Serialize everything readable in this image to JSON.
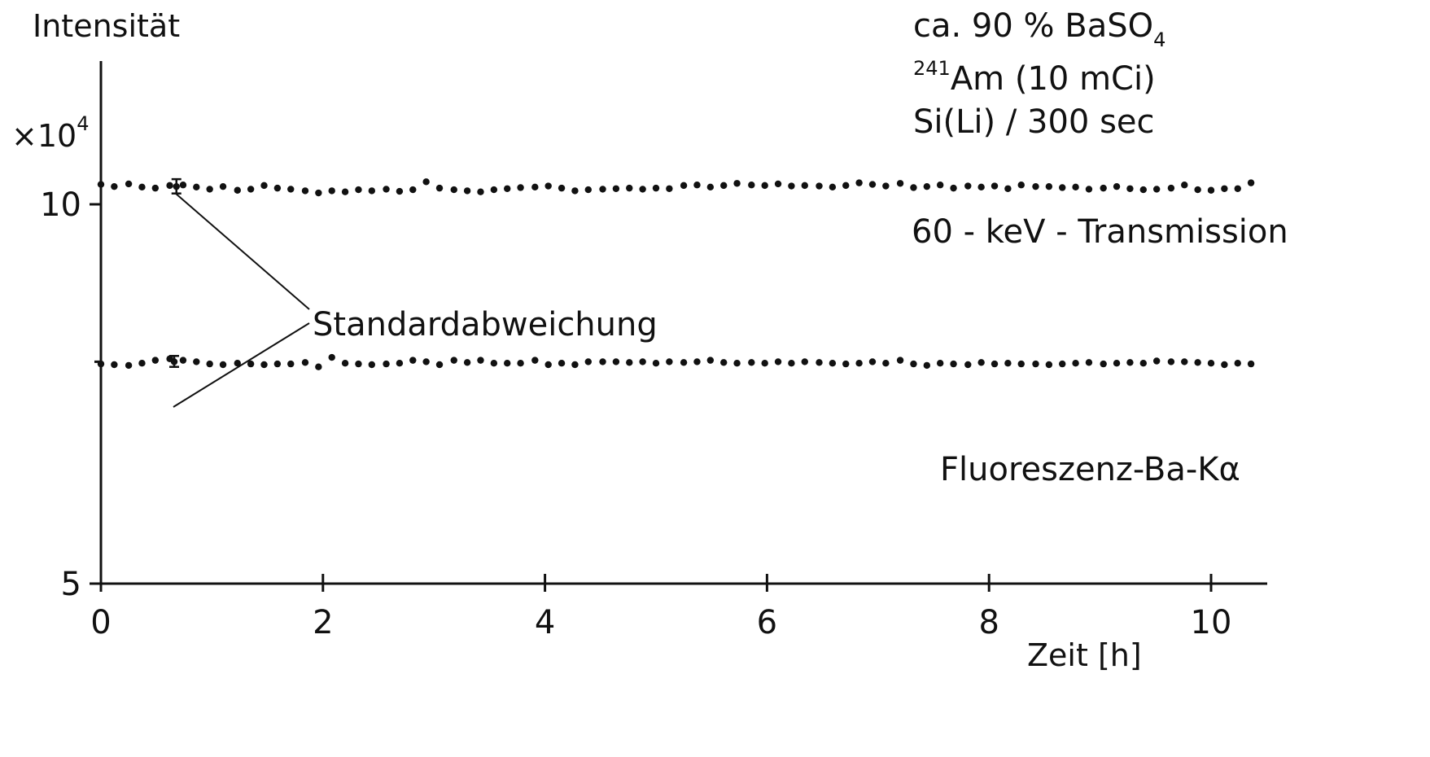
{
  "chart_data": {
    "type": "scatter",
    "y_scale": "log",
    "ylabel": "Intensität",
    "y_multiplier": {
      "base": "×10",
      "exponent": "4"
    },
    "xlabel": "Zeit  [h]",
    "xlim": [
      0,
      10.5
    ],
    "ylim": [
      5,
      14
    ],
    "x_ticks": [
      0,
      2,
      4,
      6,
      8,
      10
    ],
    "x_tick_labels": [
      "0",
      "2",
      "4",
      "6",
      "8",
      "10"
    ],
    "y_ticks_labeled": [
      5,
      10
    ],
    "y_tick_labels": [
      "5",
      "10"
    ],
    "y_ticks_unlabeled": [
      7.5
    ],
    "grid": false,
    "annotations": {
      "sample": {
        "prefix": "ca. 90 % BaSO",
        "subscript": "4"
      },
      "source": {
        "superscript": "241",
        "text": "Am (10 mCi)"
      },
      "detector": "Si(Li) / 300 sec",
      "std_dev": "Standardabweichung"
    },
    "series": [
      {
        "name": "60 - keV - Transmission",
        "error_bar": {
          "x": 0.68,
          "y": 10.33,
          "low": 10.2,
          "high": 10.47
        },
        "points": [
          [
            0.0,
            10.37
          ],
          [
            0.12,
            10.33
          ],
          [
            0.25,
            10.38
          ],
          [
            0.37,
            10.32
          ],
          [
            0.49,
            10.3
          ],
          [
            0.62,
            10.35
          ],
          [
            0.74,
            10.36
          ],
          [
            0.86,
            10.32
          ],
          [
            0.98,
            10.28
          ],
          [
            1.1,
            10.33
          ],
          [
            1.23,
            10.26
          ],
          [
            1.35,
            10.28
          ],
          [
            1.47,
            10.35
          ],
          [
            1.59,
            10.3
          ],
          [
            1.71,
            10.28
          ],
          [
            1.84,
            10.25
          ],
          [
            1.96,
            10.21
          ],
          [
            2.08,
            10.25
          ],
          [
            2.2,
            10.23
          ],
          [
            2.32,
            10.27
          ],
          [
            2.44,
            10.25
          ],
          [
            2.57,
            10.28
          ],
          [
            2.69,
            10.24
          ],
          [
            2.81,
            10.27
          ],
          [
            2.93,
            10.42
          ],
          [
            3.05,
            10.3
          ],
          [
            3.18,
            10.27
          ],
          [
            3.3,
            10.25
          ],
          [
            3.42,
            10.23
          ],
          [
            3.54,
            10.27
          ],
          [
            3.66,
            10.29
          ],
          [
            3.78,
            10.31
          ],
          [
            3.91,
            10.32
          ],
          [
            4.03,
            10.34
          ],
          [
            4.15,
            10.3
          ],
          [
            4.27,
            10.25
          ],
          [
            4.39,
            10.27
          ],
          [
            4.52,
            10.28
          ],
          [
            4.64,
            10.29
          ],
          [
            4.76,
            10.3
          ],
          [
            4.88,
            10.28
          ],
          [
            5.0,
            10.3
          ],
          [
            5.12,
            10.29
          ],
          [
            5.25,
            10.35
          ],
          [
            5.37,
            10.36
          ],
          [
            5.49,
            10.32
          ],
          [
            5.61,
            10.35
          ],
          [
            5.73,
            10.39
          ],
          [
            5.86,
            10.36
          ],
          [
            5.98,
            10.35
          ],
          [
            6.1,
            10.38
          ],
          [
            6.22,
            10.34
          ],
          [
            6.34,
            10.35
          ],
          [
            6.47,
            10.34
          ],
          [
            6.59,
            10.32
          ],
          [
            6.71,
            10.35
          ],
          [
            6.83,
            10.4
          ],
          [
            6.95,
            10.37
          ],
          [
            7.07,
            10.34
          ],
          [
            7.2,
            10.39
          ],
          [
            7.32,
            10.31
          ],
          [
            7.44,
            10.33
          ],
          [
            7.56,
            10.36
          ],
          [
            7.68,
            10.3
          ],
          [
            7.81,
            10.34
          ],
          [
            7.93,
            10.32
          ],
          [
            8.05,
            10.34
          ],
          [
            8.17,
            10.29
          ],
          [
            8.29,
            10.36
          ],
          [
            8.42,
            10.33
          ],
          [
            8.54,
            10.33
          ],
          [
            8.66,
            10.31
          ],
          [
            8.78,
            10.32
          ],
          [
            8.9,
            10.28
          ],
          [
            9.03,
            10.3
          ],
          [
            9.15,
            10.33
          ],
          [
            9.27,
            10.29
          ],
          [
            9.39,
            10.27
          ],
          [
            9.51,
            10.28
          ],
          [
            9.64,
            10.3
          ],
          [
            9.76,
            10.36
          ],
          [
            9.88,
            10.27
          ],
          [
            10.0,
            10.26
          ],
          [
            10.12,
            10.29
          ],
          [
            10.24,
            10.29
          ],
          [
            10.36,
            10.4
          ]
        ]
      },
      {
        "name": "Fluoreszenz-Ba-Kα",
        "error_bar": {
          "x": 0.66,
          "y": 7.5,
          "low": 7.43,
          "high": 7.58
        },
        "points": [
          [
            0.0,
            7.47
          ],
          [
            0.12,
            7.46
          ],
          [
            0.25,
            7.45
          ],
          [
            0.37,
            7.48
          ],
          [
            0.49,
            7.52
          ],
          [
            0.62,
            7.54
          ],
          [
            0.74,
            7.52
          ],
          [
            0.86,
            7.5
          ],
          [
            0.98,
            7.47
          ],
          [
            1.1,
            7.46
          ],
          [
            1.23,
            7.48
          ],
          [
            1.35,
            7.47
          ],
          [
            1.47,
            7.46
          ],
          [
            1.59,
            7.47
          ],
          [
            1.71,
            7.47
          ],
          [
            1.84,
            7.49
          ],
          [
            1.96,
            7.43
          ],
          [
            2.08,
            7.56
          ],
          [
            2.2,
            7.48
          ],
          [
            2.32,
            7.47
          ],
          [
            2.44,
            7.46
          ],
          [
            2.57,
            7.47
          ],
          [
            2.69,
            7.48
          ],
          [
            2.81,
            7.52
          ],
          [
            2.93,
            7.5
          ],
          [
            3.05,
            7.46
          ],
          [
            3.18,
            7.52
          ],
          [
            3.3,
            7.49
          ],
          [
            3.42,
            7.52
          ],
          [
            3.54,
            7.48
          ],
          [
            3.66,
            7.48
          ],
          [
            3.78,
            7.48
          ],
          [
            3.91,
            7.52
          ],
          [
            4.03,
            7.46
          ],
          [
            4.15,
            7.48
          ],
          [
            4.27,
            7.46
          ],
          [
            4.39,
            7.5
          ],
          [
            4.52,
            7.5
          ],
          [
            4.64,
            7.5
          ],
          [
            4.76,
            7.49
          ],
          [
            4.88,
            7.5
          ],
          [
            5.0,
            7.48
          ],
          [
            5.12,
            7.5
          ],
          [
            5.25,
            7.49
          ],
          [
            5.37,
            7.5
          ],
          [
            5.49,
            7.52
          ],
          [
            5.61,
            7.49
          ],
          [
            5.73,
            7.48
          ],
          [
            5.86,
            7.49
          ],
          [
            5.98,
            7.48
          ],
          [
            6.1,
            7.5
          ],
          [
            6.22,
            7.48
          ],
          [
            6.34,
            7.5
          ],
          [
            6.47,
            7.49
          ],
          [
            6.59,
            7.48
          ],
          [
            6.71,
            7.47
          ],
          [
            6.83,
            7.48
          ],
          [
            6.95,
            7.5
          ],
          [
            7.07,
            7.48
          ],
          [
            7.2,
            7.52
          ],
          [
            7.32,
            7.47
          ],
          [
            7.44,
            7.45
          ],
          [
            7.56,
            7.48
          ],
          [
            7.68,
            7.47
          ],
          [
            7.81,
            7.46
          ],
          [
            7.93,
            7.49
          ],
          [
            8.05,
            7.47
          ],
          [
            8.17,
            7.48
          ],
          [
            8.29,
            7.47
          ],
          [
            8.42,
            7.47
          ],
          [
            8.54,
            7.46
          ],
          [
            8.66,
            7.47
          ],
          [
            8.78,
            7.48
          ],
          [
            8.9,
            7.49
          ],
          [
            9.03,
            7.47
          ],
          [
            9.15,
            7.48
          ],
          [
            9.27,
            7.49
          ],
          [
            9.39,
            7.48
          ],
          [
            9.51,
            7.51
          ],
          [
            9.64,
            7.5
          ],
          [
            9.76,
            7.5
          ],
          [
            9.88,
            7.49
          ],
          [
            10.0,
            7.48
          ],
          [
            10.12,
            7.46
          ],
          [
            10.24,
            7.48
          ],
          [
            10.36,
            7.47
          ]
        ]
      }
    ]
  }
}
